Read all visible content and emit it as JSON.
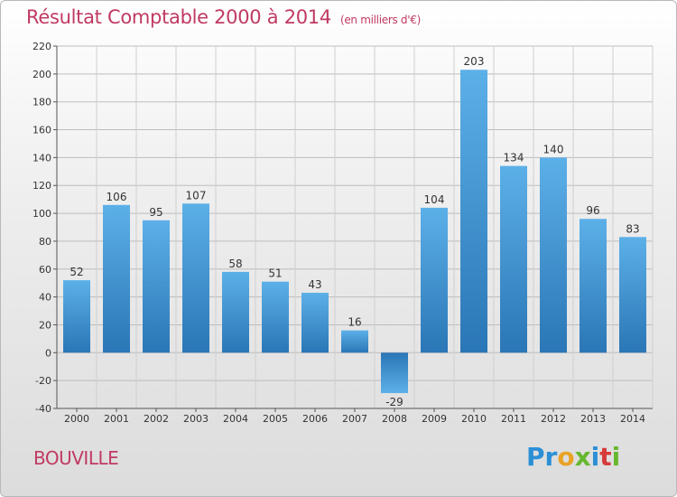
{
  "header": {
    "title": "Résultat Comptable 2000 à 2014",
    "subtitle": "(en milliers d'€)"
  },
  "footer": {
    "town": "BOUVILLE",
    "logo": "Proxiti"
  },
  "colors": {
    "accent": "#c03a62",
    "bar_light": "#5aaee6",
    "bar_dark": "#2a78b8"
  },
  "chart_data": {
    "type": "bar",
    "title": "Résultat Comptable 2000 à 2014",
    "subtitle": "(en milliers d'€)",
    "xlabel": "",
    "ylabel": "",
    "categories": [
      "2000",
      "2001",
      "2002",
      "2003",
      "2004",
      "2005",
      "2006",
      "2007",
      "2008",
      "2009",
      "2010",
      "2011",
      "2012",
      "2013",
      "2014"
    ],
    "values": [
      52,
      106,
      95,
      107,
      58,
      51,
      43,
      16,
      -29,
      104,
      203,
      134,
      140,
      96,
      83
    ],
    "ylim": [
      -40,
      220
    ],
    "yticks": [
      -40,
      -20,
      0,
      20,
      40,
      60,
      80,
      100,
      120,
      140,
      160,
      180,
      200,
      220
    ],
    "grid": true,
    "legend": "none"
  }
}
